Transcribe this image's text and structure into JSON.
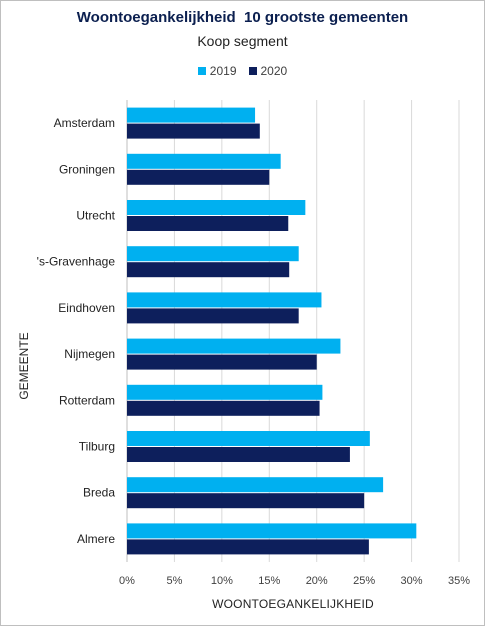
{
  "chart_data": {
    "type": "bar",
    "orientation": "horizontal",
    "title": "Woontoegankelijkheid  10 grootste gemeenten",
    "subtitle": "Koop segment",
    "xlabel": "WOONTOEGANKELIJKHEID",
    "ylabel": "GEMEENTE",
    "categories": [
      "Amsterdam",
      "Groningen",
      "Utrecht",
      "'s-Gravenhage",
      "Eindhoven",
      "Nijmegen",
      "Rotterdam",
      "Tilburg",
      "Breda",
      "Almere"
    ],
    "series": [
      {
        "name": "2019",
        "color": "#00b0f0",
        "values": [
          0.135,
          0.162,
          0.188,
          0.181,
          0.205,
          0.225,
          0.206,
          0.256,
          0.27,
          0.305
        ]
      },
      {
        "name": "2020",
        "color": "#0d1f5c",
        "values": [
          0.14,
          0.15,
          0.17,
          0.171,
          0.181,
          0.2,
          0.203,
          0.235,
          0.25,
          0.255
        ]
      }
    ],
    "xlim": [
      0,
      0.35
    ],
    "xticks": [
      "0%",
      "5%",
      "10%",
      "15%",
      "20%",
      "25%",
      "30%",
      "35%"
    ],
    "grid": true,
    "legend_position": "top"
  }
}
